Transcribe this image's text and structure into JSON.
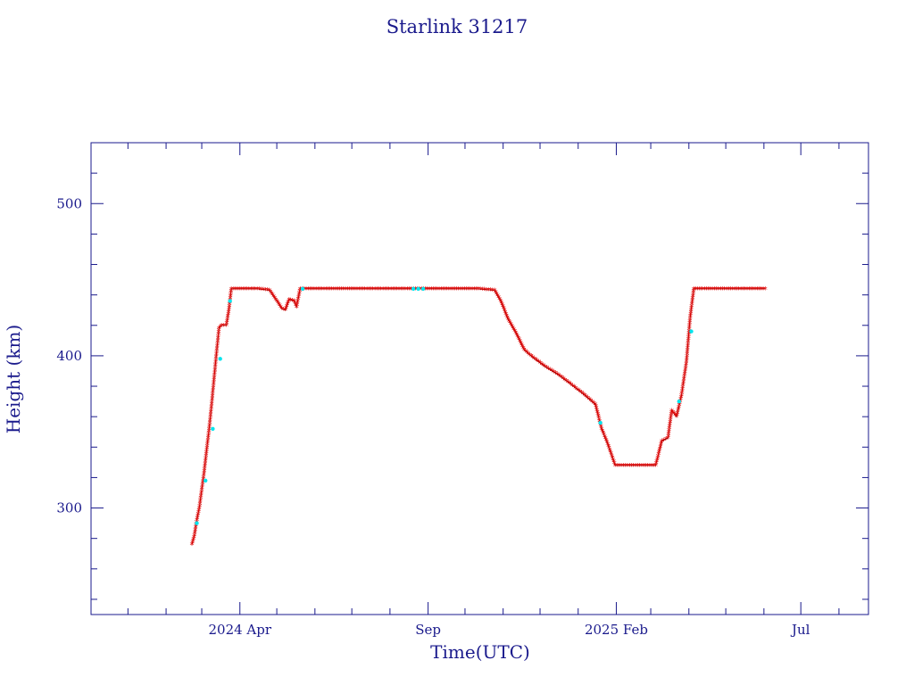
{
  "chart_data": {
    "type": "scatter",
    "title": "Starlink 31217",
    "xlabel": "Time(UTC)",
    "ylabel": "Height (km)",
    "x_type": "date",
    "xlim": [
      "2023-12-02",
      "2025-08-25"
    ],
    "ylim": [
      230,
      540
    ],
    "y_ticks": [
      300,
      400,
      500
    ],
    "y_tick_labels": [
      "300",
      "400",
      "500"
    ],
    "x_ticks": [
      "2024-04-01",
      "2024-09-01",
      "2025-02-01",
      "2025-07-01"
    ],
    "x_tick_labels": [
      "2024 Apr",
      "Sep",
      "2025 Feb",
      "Jul"
    ],
    "grid": false,
    "colors": {
      "axis": "#1a1a8c",
      "text": "#1a1a8c",
      "primary": "#e00000",
      "secondary": "#00e5ee"
    },
    "series": [
      {
        "marker": "star",
        "color": "#e00000",
        "x": [
          "2024-02-22",
          "2024-02-24",
          "2024-02-26",
          "2024-02-28",
          "2024-03-01",
          "2024-03-03",
          "2024-03-05",
          "2024-03-07",
          "2024-03-09",
          "2024-03-11",
          "2024-03-13",
          "2024-03-15",
          "2024-03-17",
          "2024-03-19",
          "2024-03-21",
          "2024-03-23",
          "2024-03-25",
          "2024-03-27",
          "2024-04-05",
          "2024-04-15",
          "2024-04-25",
          "2024-05-01",
          "2024-05-05",
          "2024-05-08",
          "2024-05-11",
          "2024-05-15",
          "2024-05-17",
          "2024-05-20",
          "2024-06-10",
          "2024-07-10",
          "2024-08-10",
          "2024-08-25",
          "2024-09-10",
          "2024-10-10",
          "2024-10-25",
          "2024-10-30",
          "2024-11-05",
          "2024-11-12",
          "2024-11-18",
          "2024-11-25",
          "2024-12-05",
          "2024-12-15",
          "2024-12-25",
          "2025-01-05",
          "2025-01-15",
          "2025-01-20",
          "2025-01-25",
          "2025-01-31",
          "2025-02-05",
          "2025-02-15",
          "2025-02-25",
          "2025-03-05",
          "2025-03-10",
          "2025-03-15",
          "2025-03-18",
          "2025-03-22",
          "2025-03-26",
          "2025-03-30",
          "2025-04-02",
          "2025-04-05",
          "2025-04-08",
          "2025-04-12",
          "2025-04-20",
          "2025-05-05",
          "2025-05-20",
          "2025-06-02"
        ],
        "y": [
          276,
          282,
          292,
          300,
          312,
          324,
          338,
          352,
          368,
          385,
          402,
          418,
          420,
          420,
          420,
          430,
          444,
          444,
          444,
          444,
          443,
          436,
          431,
          430,
          437,
          436,
          432,
          444,
          444,
          444,
          444,
          444,
          444,
          444,
          443,
          436,
          424,
          414,
          404,
          399,
          393,
          388,
          382,
          375,
          368,
          352,
          342,
          328,
          328,
          328,
          328,
          328,
          344,
          346,
          364,
          360,
          374,
          396,
          425,
          444,
          444,
          444,
          444,
          444,
          444,
          444
        ]
      },
      {
        "marker": "dot",
        "color": "#00e5ee",
        "x": [
          "2024-02-26",
          "2024-03-04",
          "2024-03-10",
          "2024-03-16",
          "2024-03-24",
          "2024-05-22",
          "2024-08-20",
          "2024-08-24",
          "2024-08-28",
          "2025-01-19",
          "2025-03-24",
          "2025-04-03"
        ],
        "y": [
          290,
          318,
          352,
          398,
          436,
          444,
          444,
          444,
          444,
          356,
          370,
          416
        ]
      }
    ]
  }
}
